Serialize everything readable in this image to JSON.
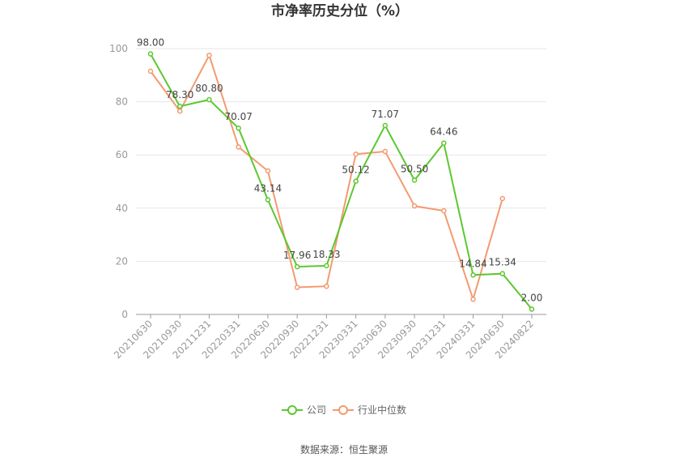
{
  "chart_data": {
    "type": "line",
    "title": "市净率历史分位（%）",
    "categories": [
      "20210630",
      "20210930",
      "20211231",
      "20220331",
      "20220630",
      "20220930",
      "20221231",
      "20230331",
      "20230630",
      "20230930",
      "20231231",
      "20240331",
      "20240630",
      "20240822"
    ],
    "series": [
      {
        "name": "公司",
        "color": "#5cc830",
        "values": [
          98.0,
          78.3,
          80.8,
          70.07,
          43.14,
          17.96,
          18.33,
          50.12,
          71.07,
          50.5,
          64.46,
          14.84,
          15.34,
          2.0
        ],
        "labels": [
          "98.00",
          "78.30",
          "80.80",
          "70.07",
          "43.14",
          "17.96",
          "18.33",
          "50.12",
          "71.07",
          "50.50",
          "64.46",
          "14.84",
          "15.34",
          "2.00"
        ]
      },
      {
        "name": "行业中位数",
        "color": "#f39a70",
        "values": [
          91.5,
          76.5,
          97.5,
          63.0,
          54.0,
          10.2,
          10.6,
          60.3,
          61.3,
          40.8,
          39.0,
          5.7,
          43.6,
          null
        ]
      }
    ],
    "ylim": [
      0,
      100
    ],
    "yticks": [
      0,
      20,
      40,
      60,
      80,
      100
    ],
    "grid": true,
    "legend": "bottom-center"
  },
  "source": "数据来源：恒生聚源"
}
